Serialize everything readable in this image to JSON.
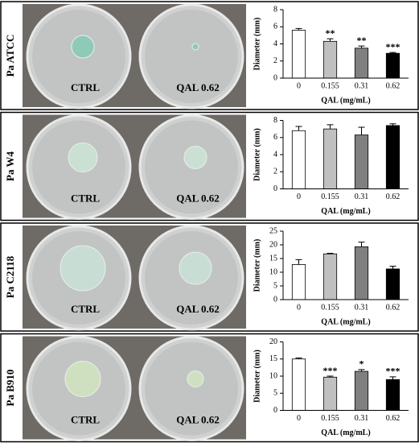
{
  "panels": [
    {
      "label": "Pa ATCC",
      "dishes": [
        "CTRL",
        "QAL 0.62"
      ]
    },
    {
      "label": "Pa W4",
      "dishes": [
        "CTRL",
        "QAL 0.62"
      ]
    },
    {
      "label": "Pa C2118",
      "dishes": [
        "CTRL",
        "QAL 0.62"
      ]
    },
    {
      "label": "Pa B910",
      "dishes": [
        "CTRL",
        "QAL 0.62"
      ]
    }
  ],
  "chart_data": [
    {
      "type": "bar",
      "x_label": "QAL (mg/mL)",
      "y_label": "Diameter (mm)",
      "categories": [
        "0",
        "0.155",
        "0.31",
        "0.62"
      ],
      "values": [
        5.6,
        4.3,
        3.5,
        2.9
      ],
      "errors": [
        0.2,
        0.3,
        0.25,
        0.1
      ],
      "significance": [
        null,
        "**",
        "**",
        "***"
      ],
      "colors": [
        "#ffffff",
        "#c0c0c0",
        "#808080",
        "#000000"
      ],
      "ylim": [
        0,
        8
      ],
      "yticks": [
        0,
        2,
        4,
        6,
        8
      ]
    },
    {
      "type": "bar",
      "x_label": "QAL (mg/mL)",
      "y_label": "Diameter (mm)",
      "categories": [
        "0",
        "0.155",
        "0.31",
        "0.62"
      ],
      "values": [
        6.8,
        7.0,
        6.3,
        7.4
      ],
      "errors": [
        0.5,
        0.5,
        0.9,
        0.2
      ],
      "significance": [
        null,
        null,
        null,
        null
      ],
      "colors": [
        "#ffffff",
        "#c0c0c0",
        "#808080",
        "#000000"
      ],
      "ylim": [
        0,
        8
      ],
      "yticks": [
        0,
        2,
        4,
        6,
        8
      ]
    },
    {
      "type": "bar",
      "x_label": "QAL (mg/mL)",
      "y_label": "Diameter (mm)",
      "categories": [
        "0",
        "0.155",
        "0.31",
        "0.62"
      ],
      "values": [
        12.8,
        16.7,
        19.3,
        11.2
      ],
      "errors": [
        1.8,
        0.2,
        1.7,
        1.0
      ],
      "significance": [
        null,
        null,
        null,
        null
      ],
      "colors": [
        "#ffffff",
        "#c0c0c0",
        "#808080",
        "#000000"
      ],
      "ylim": [
        0,
        25
      ],
      "yticks": [
        0,
        5,
        10,
        15,
        20,
        25
      ]
    },
    {
      "type": "bar",
      "x_label": "QAL (mg/mL)",
      "y_label": "Diameter (mm)",
      "categories": [
        "0",
        "0.155",
        "0.31",
        "0.62"
      ],
      "values": [
        15.0,
        9.7,
        11.4,
        9.0
      ],
      "errors": [
        0.3,
        0.3,
        0.5,
        0.8
      ],
      "significance": [
        null,
        "***",
        "*",
        "***"
      ],
      "colors": [
        "#ffffff",
        "#c0c0c0",
        "#808080",
        "#000000"
      ],
      "ylim": [
        0,
        20
      ],
      "yticks": [
        0,
        5,
        10,
        15,
        20
      ]
    }
  ]
}
